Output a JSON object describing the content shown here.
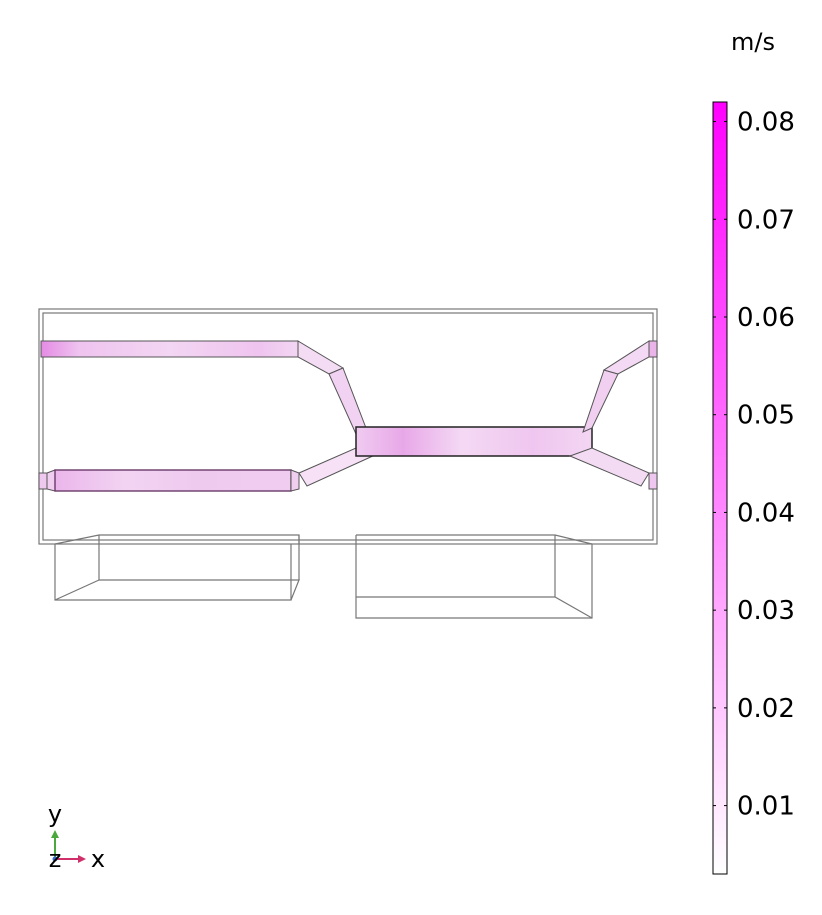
{
  "colorbar": {
    "unit": "m/s",
    "min": 0.003,
    "max": 0.082,
    "ticks": [
      0.01,
      0.02,
      0.03,
      0.04,
      0.05,
      0.06,
      0.07,
      0.08
    ],
    "tick_labels": [
      "0.01",
      "0.02",
      "0.03",
      "0.04",
      "0.05",
      "0.06",
      "0.07",
      "0.08"
    ],
    "color_low": "#ffffff",
    "color_high": "#ff00ff"
  },
  "axes_triad": {
    "y_label": "y",
    "x_label": "x",
    "z_label": "z",
    "colors": {
      "x": "#d0306a",
      "y": "#4aa83c",
      "z": "#3a6ac8"
    }
  },
  "flow_colors": {
    "weak": "#f6e3f6",
    "medium": "#efc4ef",
    "strong": "#e58be5"
  }
}
